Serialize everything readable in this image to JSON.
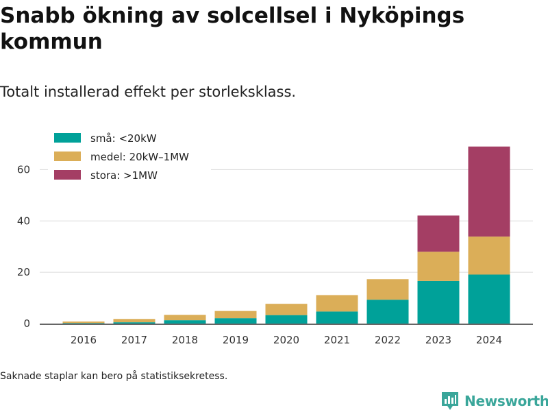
{
  "title": "Snabb ökning av solcellsel i Nyköpings kommun",
  "subtitle": "Totalt installerad effekt per storleksklass.",
  "footnote": "Saknade staplar kan bero på statistiksekretess.",
  "brand": {
    "name": "Newsworthy",
    "logo_icon": "newsworthy-logo-icon",
    "color": "#3aa69a"
  },
  "chart_data": {
    "type": "bar",
    "stacked": true,
    "categories": [
      "2016",
      "2017",
      "2018",
      "2019",
      "2020",
      "2021",
      "2022",
      "2023",
      "2024"
    ],
    "series": [
      {
        "name": "små: <20kW",
        "color": "#00a199",
        "values": [
          0.2,
          0.5,
          1.3,
          2.1,
          3.3,
          4.7,
          9.3,
          16.6,
          19.1
        ]
      },
      {
        "name": "medel: 20kW–1MW",
        "color": "#dbae58",
        "values": [
          0.6,
          1.3,
          2.1,
          2.8,
          4.4,
          6.4,
          8.0,
          11.4,
          14.8
        ]
      },
      {
        "name": "stora: >1MW",
        "color": "#a43e64",
        "values": [
          0,
          0,
          0,
          0,
          0,
          0,
          0,
          14.1,
          35.1
        ]
      }
    ],
    "yticks": [
      0,
      20,
      40,
      60
    ],
    "ylim": [
      0,
      70
    ],
    "grid": true,
    "legend_position": "top-left"
  }
}
